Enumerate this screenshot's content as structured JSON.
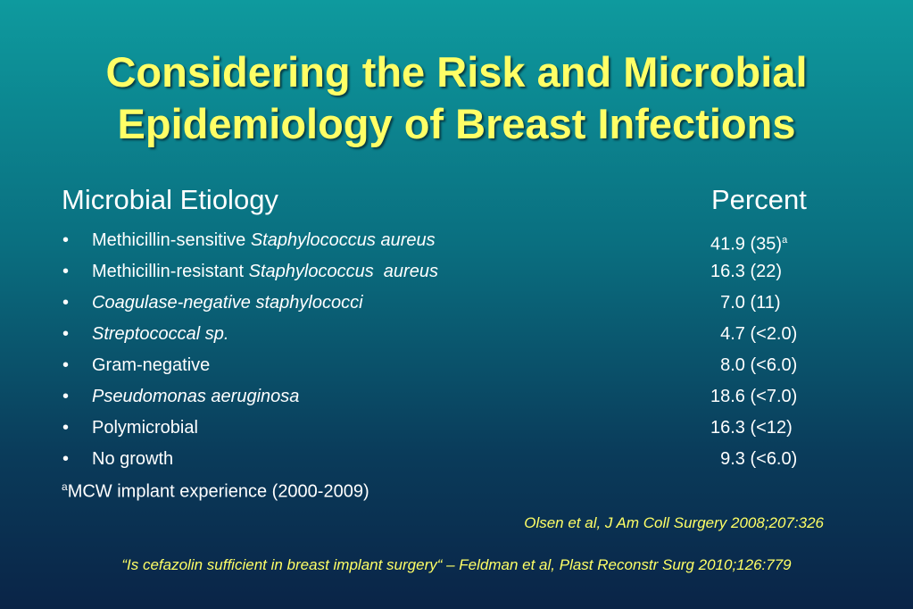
{
  "title_line1": "Considering the Risk and Microbial",
  "title_line2": "Epidemiology of Breast Infections",
  "header": {
    "left": "Microbial Etiology",
    "right": "Percent"
  },
  "rows": [
    {
      "bullet": "•",
      "prefix": "Methicillin-sensitive ",
      "italic": "Staphylococcus aureus",
      "value": "41.9 (35)",
      "sup": "a"
    },
    {
      "bullet": "•",
      "prefix": "Methicillin-resistant ",
      "italic": "Staphylococcus  aureus",
      "value": "16.3 (22)",
      "sup": ""
    },
    {
      "bullet": "•",
      "prefix": "",
      "italic": "Coagulase-negative staphylococci",
      "value": "  7.0 (11)",
      "sup": ""
    },
    {
      "bullet": "•",
      "prefix": "",
      "italic": "Streptococcal sp.",
      "value": "  4.7 (<2.0)",
      "sup": ""
    },
    {
      "bullet": "•",
      "prefix": "Gram-negative",
      "italic": "",
      "value": "  8.0 (<6.0)",
      "sup": ""
    },
    {
      "bullet": "•",
      "prefix": "",
      "italic": "Pseudomonas aeruginosa",
      "value": "18.6 (<7.0)",
      "sup": ""
    },
    {
      "bullet": "•",
      "prefix": "Polymicrobial",
      "italic": "",
      "value": "16.3 (<12)",
      "sup": ""
    },
    {
      "bullet": "•",
      "prefix": "No growth",
      "italic": "",
      "value": "  9.3 (<6.0)",
      "sup": ""
    }
  ],
  "footnote": {
    "sup": "a",
    "text": "MCW implant experience (2000-2009)"
  },
  "citation": "Olsen et al, J Am Coll Surgery 2008;207:326",
  "quote": "“Is cefazolin sufficient in breast implant surgery“ – Feldman et al, Plast Reconstr Surg 2010;126:779"
}
